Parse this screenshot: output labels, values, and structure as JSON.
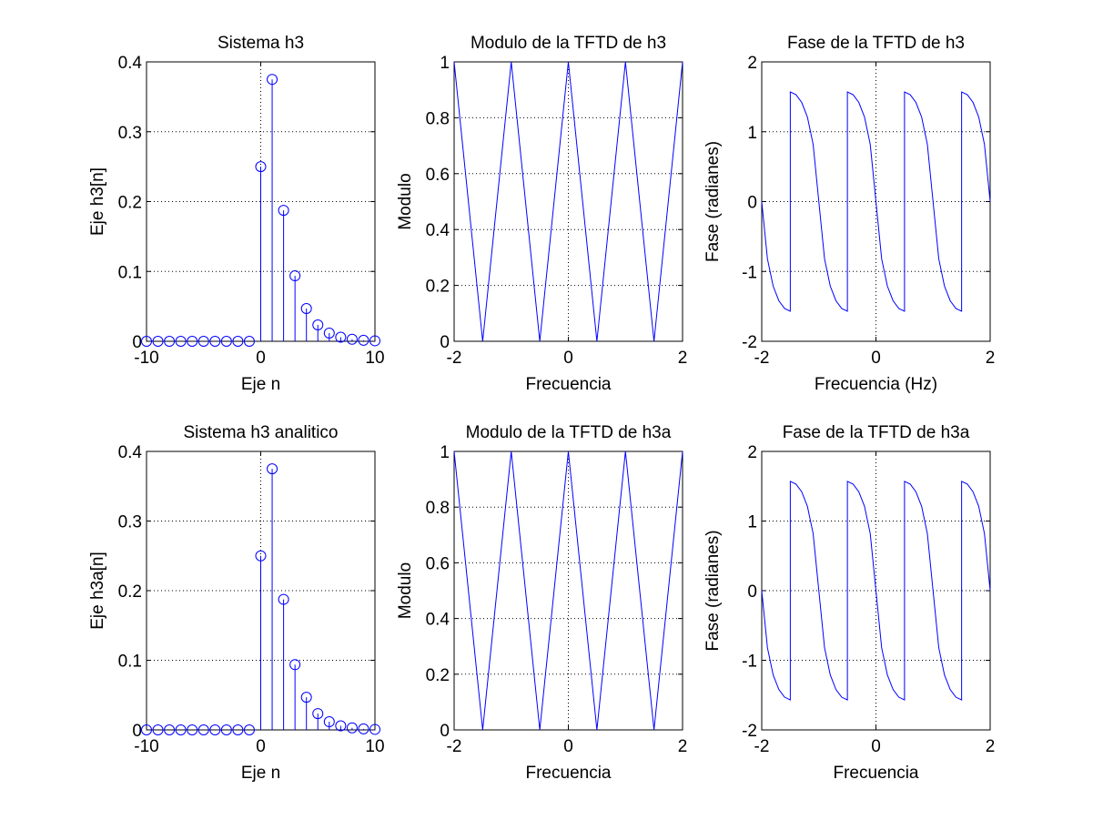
{
  "figure": {
    "background": "#ffffff",
    "line_color": "#0000ff"
  },
  "chart_data": [
    {
      "type": "stem",
      "title": "Sistema h3",
      "xlabel": "Eje n",
      "ylabel": "Eje h3[n]",
      "xlim": [
        -10,
        10
      ],
      "ylim": [
        0,
        0.4
      ],
      "xticks": [
        -10,
        0,
        10
      ],
      "yticks": [
        0,
        0.1,
        0.2,
        0.3,
        0.4
      ],
      "grid": true,
      "n": [
        -10,
        -9,
        -8,
        -7,
        -6,
        -5,
        -4,
        -3,
        -2,
        -1,
        0,
        1,
        2,
        3,
        4,
        5,
        6,
        7,
        8,
        9,
        10
      ],
      "values": [
        0,
        0,
        0,
        0,
        0,
        0,
        0,
        0,
        0,
        0,
        0.25,
        0.375,
        0.1875,
        0.09375,
        0.046875,
        0.0234375,
        0.01171875,
        0.005859375,
        0.0029296875,
        0.00146484375,
        0.000732421875
      ]
    },
    {
      "type": "line",
      "title": "Modulo de la TFTD de h3",
      "xlabel": "Frecuencia",
      "ylabel": "Modulo",
      "xlim": [
        -2,
        2
      ],
      "ylim": [
        0,
        1
      ],
      "xticks": [
        -2,
        0,
        2
      ],
      "yticks": [
        0,
        0.2,
        0.4,
        0.6,
        0.8,
        1
      ],
      "grid": true,
      "x": [
        -2,
        -1.5,
        -1,
        -0.5,
        0,
        0.5,
        1,
        1.5,
        2
      ],
      "y": [
        1,
        0,
        1,
        0,
        1,
        0,
        1,
        0,
        1
      ]
    },
    {
      "type": "line",
      "title": "Fase de la TFTD de h3",
      "xlabel": "Frecuencia (Hz)",
      "ylabel": "Fase (radianes)",
      "xlim": [
        -2,
        2
      ],
      "ylim": [
        -2,
        2
      ],
      "xticks": [
        -2,
        0,
        2
      ],
      "yticks": [
        -2,
        -1,
        0,
        1,
        2
      ],
      "grid": true,
      "x": [
        -2,
        -1.9,
        -1.8,
        -1.7,
        -1.6,
        -1.5,
        -1.5,
        -1.4,
        -1.3,
        -1.2,
        -1.1,
        -1,
        -0.9,
        -0.8,
        -0.7,
        -0.6,
        -0.5,
        -0.5,
        -0.4,
        -0.3,
        -0.2,
        -0.1,
        0,
        0.1,
        0.2,
        0.3,
        0.4,
        0.5,
        0.5,
        0.6,
        0.7,
        0.8,
        0.9,
        1,
        1.1,
        1.2,
        1.3,
        1.4,
        1.5,
        1.5,
        1.6,
        1.7,
        1.8,
        1.9,
        2
      ],
      "y": [
        0,
        -0.82,
        -1.21,
        -1.42,
        -1.53,
        -1.57,
        1.57,
        1.53,
        1.42,
        1.21,
        0.82,
        0,
        -0.82,
        -1.21,
        -1.42,
        -1.53,
        -1.57,
        1.57,
        1.53,
        1.42,
        1.21,
        0.82,
        0,
        -0.82,
        -1.21,
        -1.42,
        -1.53,
        -1.57,
        1.57,
        1.53,
        1.42,
        1.21,
        0.82,
        0,
        -0.82,
        -1.21,
        -1.42,
        -1.53,
        -1.57,
        1.57,
        1.53,
        1.42,
        1.21,
        0.82,
        0
      ]
    },
    {
      "type": "stem",
      "title": "Sistema h3 analitico",
      "xlabel": "Eje n",
      "ylabel": "Eje h3a[n]",
      "xlim": [
        -10,
        10
      ],
      "ylim": [
        0,
        0.4
      ],
      "xticks": [
        -10,
        0,
        10
      ],
      "yticks": [
        0,
        0.1,
        0.2,
        0.3,
        0.4
      ],
      "grid": true,
      "n": [
        -10,
        -9,
        -8,
        -7,
        -6,
        -5,
        -4,
        -3,
        -2,
        -1,
        0,
        1,
        2,
        3,
        4,
        5,
        6,
        7,
        8,
        9,
        10
      ],
      "values": [
        0,
        0,
        0,
        0,
        0,
        0,
        0,
        0,
        0,
        0,
        0.25,
        0.375,
        0.1875,
        0.09375,
        0.046875,
        0.0234375,
        0.01171875,
        0.005859375,
        0.0029296875,
        0.00146484375,
        0.000732421875
      ]
    },
    {
      "type": "line",
      "title": "Modulo de la TFTD de h3a",
      "xlabel": "Frecuencia",
      "ylabel": "Modulo",
      "xlim": [
        -2,
        2
      ],
      "ylim": [
        0,
        1
      ],
      "xticks": [
        -2,
        0,
        2
      ],
      "yticks": [
        0,
        0.2,
        0.4,
        0.6,
        0.8,
        1
      ],
      "grid": true,
      "x": [
        -2,
        -1.5,
        -1,
        -0.5,
        0,
        0.5,
        1,
        1.5,
        2
      ],
      "y": [
        1,
        0,
        1,
        0,
        1,
        0,
        1,
        0,
        1
      ]
    },
    {
      "type": "line",
      "title": "Fase de la TFTD de h3a",
      "xlabel": "Frecuencia",
      "ylabel": "Fase (radianes)",
      "xlim": [
        -2,
        2
      ],
      "ylim": [
        -2,
        2
      ],
      "xticks": [
        -2,
        0,
        2
      ],
      "yticks": [
        -2,
        -1,
        0,
        1,
        2
      ],
      "grid": true,
      "x": [
        -2,
        -1.9,
        -1.8,
        -1.7,
        -1.6,
        -1.5,
        -1.5,
        -1.4,
        -1.3,
        -1.2,
        -1.1,
        -1,
        -0.9,
        -0.8,
        -0.7,
        -0.6,
        -0.5,
        -0.5,
        -0.4,
        -0.3,
        -0.2,
        -0.1,
        0,
        0.1,
        0.2,
        0.3,
        0.4,
        0.5,
        0.5,
        0.6,
        0.7,
        0.8,
        0.9,
        1,
        1.1,
        1.2,
        1.3,
        1.4,
        1.5,
        1.5,
        1.6,
        1.7,
        1.8,
        1.9,
        2
      ],
      "y": [
        0,
        -0.82,
        -1.21,
        -1.42,
        -1.53,
        -1.57,
        1.57,
        1.53,
        1.42,
        1.21,
        0.82,
        0,
        -0.82,
        -1.21,
        -1.42,
        -1.53,
        -1.57,
        1.57,
        1.53,
        1.42,
        1.21,
        0.82,
        0,
        -0.82,
        -1.21,
        -1.42,
        -1.53,
        -1.57,
        1.57,
        1.53,
        1.42,
        1.21,
        0.82,
        0,
        -0.82,
        -1.21,
        -1.42,
        -1.53,
        -1.57,
        1.57,
        1.53,
        1.42,
        1.21,
        0.82,
        0
      ]
    }
  ]
}
